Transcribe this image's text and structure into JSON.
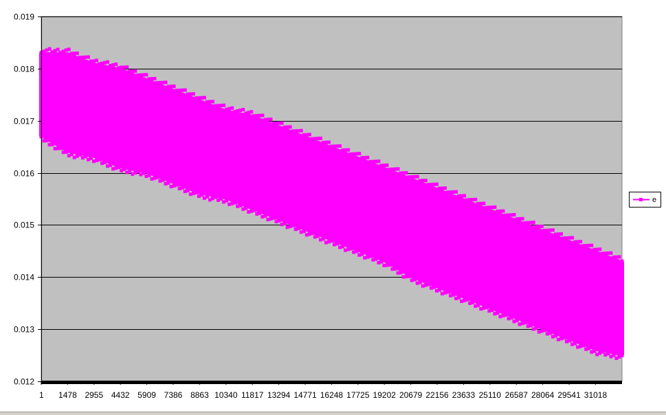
{
  "chart_data": {
    "type": "line",
    "title": "",
    "xlabel": "",
    "ylabel": "",
    "x_tick_labels": [
      "1",
      "1478",
      "2955",
      "4432",
      "5909",
      "7386",
      "8863",
      "10340",
      "11817",
      "13294",
      "14771",
      "16248",
      "17725",
      "19202",
      "20679",
      "22156",
      "23633",
      "25110",
      "26587",
      "28064",
      "29541",
      "31018"
    ],
    "x_tick_values": [
      1,
      1478,
      2955,
      4432,
      5909,
      7386,
      8863,
      10340,
      11817,
      13294,
      14771,
      16248,
      17725,
      19202,
      20679,
      22156,
      23633,
      25110,
      26587,
      28064,
      29541,
      31018
    ],
    "xlim": [
      1,
      32500
    ],
    "ylim": [
      0.012,
      0.019
    ],
    "y_ticks": [
      0.012,
      0.013,
      0.014,
      0.015,
      0.016,
      0.017,
      0.018,
      0.019
    ],
    "y_tick_labels": [
      "0.012",
      "0.013",
      "0.014",
      "0.015",
      "0.016",
      "0.017",
      "0.018",
      "0.019"
    ],
    "grid": "horizontal",
    "legend_position": "right",
    "series": [
      {
        "name": "e",
        "color": "#ff00ff",
        "marker": "square",
        "envelope_x": [
          1,
          1478,
          2955,
          4432,
          5909,
          7386,
          8863,
          10340,
          11817,
          13294,
          14771,
          16248,
          17725,
          19202,
          20679,
          22156,
          23633,
          25110,
          26587,
          28064,
          29541,
          31018,
          32500
        ],
        "envelope_upper": [
          0.0183,
          0.0183,
          0.0181,
          0.018,
          0.0178,
          0.0176,
          0.0174,
          0.0172,
          0.0171,
          0.0169,
          0.0167,
          0.0165,
          0.0163,
          0.0161,
          0.0159,
          0.0157,
          0.0155,
          0.0153,
          0.0151,
          0.0149,
          0.0147,
          0.0145,
          0.0143
        ],
        "envelope_lower": [
          0.0167,
          0.0164,
          0.0163,
          0.0161,
          0.016,
          0.0158,
          0.0156,
          0.0155,
          0.0153,
          0.0151,
          0.0149,
          0.0147,
          0.0145,
          0.0143,
          0.014,
          0.0138,
          0.0136,
          0.0134,
          0.0132,
          0.013,
          0.0128,
          0.0126,
          0.0125
        ]
      }
    ]
  },
  "colors": {
    "plot_background": "#c0c0c0",
    "series": "#ff00ff",
    "gridline": "#000000",
    "axis": "#000000"
  }
}
